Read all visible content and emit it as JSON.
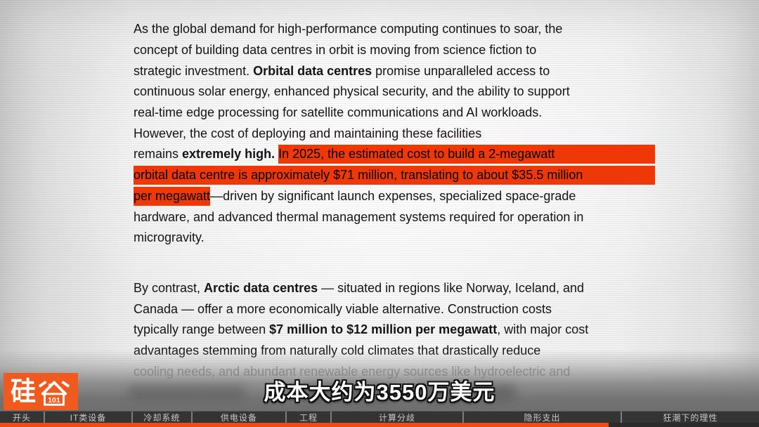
{
  "colors": {
    "highlight_red": "#ee3808",
    "logo_orange": "#f05a1f",
    "progress_orange": "#f04c0e",
    "chapter_bar_bg": "#3a3a3a"
  },
  "document": {
    "paragraphs": [
      {
        "lines": [
          {
            "s": [
              {
                "t": "As the global demand for high-performance computing continues to soar, the"
              }
            ]
          },
          {
            "s": [
              {
                "t": "concept of building data centres in orbit is moving from science fiction to"
              }
            ]
          },
          {
            "s": [
              {
                "t": "strategic investment. "
              },
              {
                "t": "Orbital data centres",
                "b": true
              },
              {
                "t": " promise unparalleled access to"
              }
            ]
          },
          {
            "s": [
              {
                "t": "continuous solar energy, enhanced physical security, and the ability to support"
              }
            ]
          },
          {
            "s": [
              {
                "t": "real-time edge processing for satellite communications and AI workloads."
              }
            ]
          },
          {
            "s": [
              {
                "t": "However, the cost of deploying and maintaining these facilities"
              }
            ]
          },
          {
            "s": [
              {
                "t": "remains "
              },
              {
                "t": "extremely high.",
                "b": true
              },
              {
                "t": " "
              },
              {
                "t": "In 2025, the estimated cost to build a 2-megawatt",
                "h": true,
                "g": true
              }
            ]
          },
          {
            "s": [
              {
                "t": "orbital data centre is approximately $71 million, translating to about $35.5 million",
                "h": true,
                "g": true
              }
            ]
          },
          {
            "s": [
              {
                "t": "per megawatt",
                "h": true
              },
              {
                "t": "—driven by significant launch expenses, specialized space-grade"
              }
            ]
          },
          {
            "s": [
              {
                "t": "hardware, and advanced thermal management systems required for operation in"
              }
            ]
          },
          {
            "s": [
              {
                "t": "microgravity."
              }
            ]
          }
        ]
      },
      {
        "lines": [
          {
            "s": [
              {
                "t": "By contrast, "
              },
              {
                "t": "Arctic data centres",
                "b": true
              },
              {
                "t": " — situated in regions like Norway, Iceland, and"
              }
            ]
          },
          {
            "s": [
              {
                "t": "Canada — offer a more economically viable alternative. Construction costs"
              }
            ]
          },
          {
            "s": [
              {
                "t": "typically range between "
              },
              {
                "t": "$7 million to $12 million per megawatt",
                "b": true
              },
              {
                "t": ", with major cost"
              }
            ]
          },
          {
            "s": [
              {
                "t": "advantages stemming from naturally cold climates that drastically reduce"
              }
            ]
          },
          {
            "f": true,
            "s": [
              {
                "t": "cooling needs, and abundant renewable energy sources like hydroelectric and"
              }
            ]
          }
        ]
      }
    ]
  },
  "subtitle": {
    "text": "成本大约为3550万美元"
  },
  "logo": {
    "char": "硅",
    "badge": "101"
  },
  "chapter_bar": {
    "progress_pct": 80.2,
    "chapters": [
      {
        "label": "开头",
        "width_pct": 5.74
      },
      {
        "label": "IT类设备",
        "width_pct": 11.57
      },
      {
        "label": "冷却系统",
        "width_pct": 7.87
      },
      {
        "label": "供电设备",
        "width_pct": 12.41
      },
      {
        "label": "工程",
        "width_pct": 5.93
      },
      {
        "label": "计算分歧",
        "width_pct": 17.41
      },
      {
        "label": "隐形支出",
        "width_pct": 20.83
      },
      {
        "label": "狂潮下的理性",
        "width_pct": 18.24
      }
    ]
  }
}
